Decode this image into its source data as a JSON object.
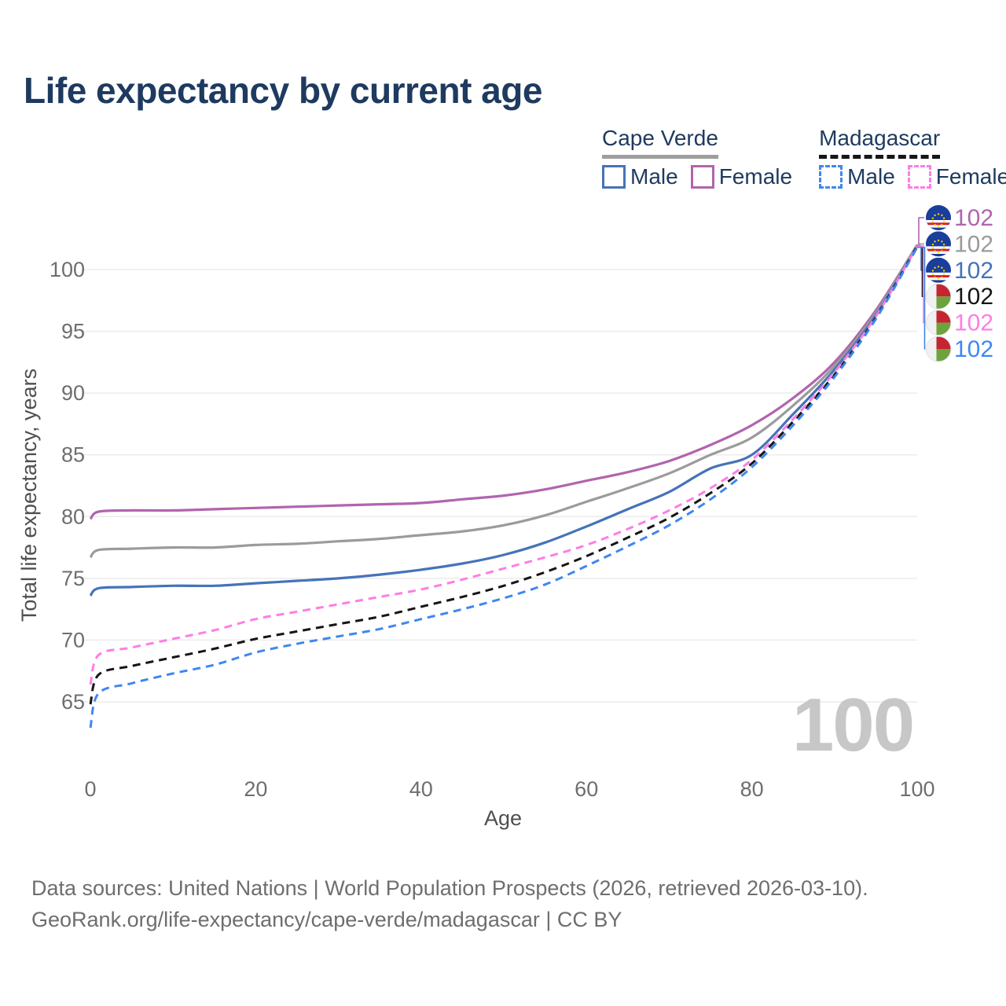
{
  "title": "Life expectancy by current age",
  "legend": {
    "groups": [
      {
        "name": "Cape Verde",
        "line_style": "solid",
        "underline_color": "#9e9e9e",
        "items": [
          {
            "label": "Male",
            "color": "#4573b9"
          },
          {
            "label": "Female",
            "color": "#b164ae"
          }
        ]
      },
      {
        "name": "Madagascar",
        "line_style": "dashed",
        "underline_color": "#161616",
        "items": [
          {
            "label": "Male",
            "color": "#3f87f0"
          },
          {
            "label": "Female",
            "color": "#ff7de5"
          }
        ]
      }
    ]
  },
  "age_counter": "100",
  "footer": {
    "line1": "Data sources: United Nations | World Population Prospects (2026, retrieved 2026-03-10).",
    "line2": "GeoRank.org/life-expectancy/cape-verde/madagascar | CC BY"
  },
  "chart_data": {
    "type": "line",
    "title": "Life expectancy by current age",
    "xlabel": "Age",
    "ylabel": "Total life expectancy, years",
    "xlim": [
      0,
      100
    ],
    "ylim": [
      62,
      103
    ],
    "xticks": [
      0,
      20,
      40,
      60,
      80,
      100
    ],
    "yticks": [
      65,
      70,
      75,
      80,
      85,
      90,
      95,
      100
    ],
    "grid": "horizontal",
    "legend_position": "top-right",
    "x": [
      0,
      1,
      5,
      10,
      15,
      20,
      25,
      30,
      35,
      40,
      45,
      50,
      55,
      60,
      65,
      70,
      75,
      80,
      85,
      90,
      95,
      100
    ],
    "series": [
      {
        "name": "Cape Verde Female",
        "country": "Cape Verde",
        "sex": "Female",
        "color": "#b164ae",
        "dashed": false,
        "flag": "cv",
        "slot": 0,
        "end_label": "102",
        "values": [
          79.8,
          80.4,
          80.5,
          80.5,
          80.6,
          80.7,
          80.8,
          80.9,
          81.0,
          81.1,
          81.4,
          81.7,
          82.2,
          82.9,
          83.6,
          84.5,
          85.8,
          87.4,
          89.6,
          92.5,
          96.7,
          102.0
        ]
      },
      {
        "name": "Cape Verde Both sexes",
        "country": "Cape Verde",
        "sex": "Both",
        "color": "#9b9b9b",
        "dashed": false,
        "flag": "cv",
        "slot": 1,
        "end_label": "102",
        "values": [
          76.7,
          77.3,
          77.4,
          77.5,
          77.5,
          77.7,
          77.8,
          78.0,
          78.2,
          78.5,
          78.8,
          79.3,
          80.1,
          81.2,
          82.3,
          83.5,
          85.0,
          86.4,
          89.0,
          92.2,
          96.5,
          102.0
        ]
      },
      {
        "name": "Cape Verde Male",
        "country": "Cape Verde",
        "sex": "Male",
        "color": "#4573b9",
        "dashed": false,
        "flag": "cv",
        "slot": 2,
        "end_label": "102",
        "values": [
          73.6,
          74.2,
          74.3,
          74.4,
          74.4,
          74.6,
          74.8,
          75.0,
          75.3,
          75.7,
          76.2,
          76.9,
          77.9,
          79.2,
          80.6,
          82.0,
          83.9,
          85.0,
          88.3,
          91.9,
          96.3,
          101.9
        ]
      },
      {
        "name": "Madagascar Both sexes",
        "country": "Madagascar",
        "sex": "Both",
        "color": "#151515",
        "dashed": true,
        "flag": "mg",
        "slot": 3,
        "end_label": "102",
        "values": [
          64.8,
          67.2,
          67.9,
          68.6,
          69.3,
          70.1,
          70.7,
          71.3,
          71.9,
          72.7,
          73.5,
          74.4,
          75.5,
          76.8,
          78.3,
          79.9,
          81.9,
          84.3,
          87.7,
          91.5,
          96.1,
          101.9
        ]
      },
      {
        "name": "Madagascar Female",
        "country": "Madagascar",
        "sex": "Female",
        "color": "#ff7de5",
        "dashed": true,
        "flag": "mg",
        "slot": 4,
        "end_label": "102",
        "values": [
          66.4,
          68.8,
          69.4,
          70.1,
          70.8,
          71.7,
          72.3,
          72.9,
          73.5,
          74.1,
          74.9,
          75.8,
          76.7,
          77.7,
          79.0,
          80.5,
          82.3,
          84.6,
          87.9,
          91.7,
          96.2,
          101.9
        ]
      },
      {
        "name": "Madagascar Male",
        "country": "Madagascar",
        "sex": "Male",
        "color": "#3f87f0",
        "dashed": true,
        "flag": "mg",
        "slot": 5,
        "end_label": "102",
        "values": [
          62.9,
          65.7,
          66.5,
          67.3,
          68.0,
          69.0,
          69.7,
          70.3,
          70.9,
          71.7,
          72.5,
          73.4,
          74.5,
          76.0,
          77.6,
          79.3,
          81.4,
          84.0,
          87.4,
          91.3,
          96.0,
          101.8
        ]
      }
    ],
    "colors": {
      "grid": "#ececec",
      "tick_text": "#6e6e6e",
      "axis_title": "#4f4f4f",
      "watermark": "#c7c7c7",
      "title_text": "#1e3a5f"
    }
  }
}
